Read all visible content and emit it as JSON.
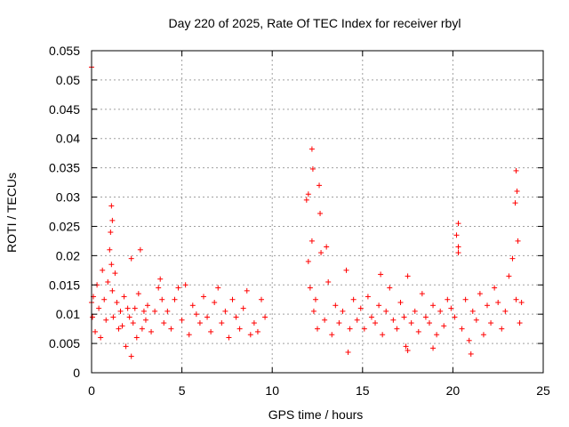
{
  "chart_data": {
    "type": "scatter",
    "title": "Day 220 of 2025, Rate Of TEC Index for receiver rbyl",
    "xlabel": "GPS time / hours",
    "ylabel": "ROTI / TECUs",
    "xlim": [
      0,
      25
    ],
    "ylim": [
      0,
      0.055
    ],
    "x_ticks": [
      "0",
      "5",
      "10",
      "15",
      "20",
      "25"
    ],
    "y_ticks": [
      "0",
      "0.005",
      "0.01",
      "0.015",
      "0.02",
      "0.025",
      "0.03",
      "0.035",
      "0.04",
      "0.045",
      "0.05",
      "0.055"
    ],
    "grid": true,
    "marker": "+",
    "series_color": "#ff0000",
    "series": [
      {
        "x": [
          0.0,
          0.05,
          0.1,
          0.2,
          0.3,
          0.4,
          0.5,
          0.6,
          0.7,
          0.8,
          0.9,
          1.0,
          1.05,
          1.1,
          1.15,
          1.2,
          1.3,
          1.4,
          1.5,
          1.6,
          1.7,
          1.8,
          1.9,
          2.0,
          2.1,
          2.2,
          2.3,
          2.4,
          2.5,
          2.6,
          2.7,
          2.8,
          2.9,
          3.0,
          3.1,
          3.3,
          3.5,
          3.7,
          3.8,
          3.9,
          4.0,
          4.2,
          4.4,
          4.6,
          4.8,
          5.0,
          5.2,
          5.4,
          5.6,
          5.8,
          6.0,
          6.2,
          6.4,
          6.6,
          6.8,
          7.0,
          7.2,
          7.4,
          7.6,
          7.8,
          8.0,
          8.2,
          8.4,
          8.6,
          8.8,
          9.0,
          9.2,
          9.4,
          9.6,
          11.9,
          12.0,
          12.1,
          12.2,
          12.3,
          12.4,
          12.5,
          12.7,
          12.9,
          13.1,
          13.3,
          13.5,
          13.7,
          13.9,
          14.1,
          14.3,
          14.5,
          14.7,
          14.9,
          15.1,
          15.3,
          15.5,
          15.7,
          15.9,
          16.1,
          16.3,
          16.5,
          16.7,
          16.9,
          17.1,
          17.3,
          17.5,
          17.7,
          17.9,
          18.1,
          18.3,
          18.5,
          18.7,
          18.9,
          19.1,
          19.3,
          19.5,
          19.7,
          19.9,
          20.1,
          20.2,
          20.3,
          20.5,
          20.7,
          20.9,
          21.1,
          21.3,
          21.5,
          21.7,
          21.9,
          22.1,
          22.3,
          22.5,
          22.7,
          22.9,
          23.1,
          23.3,
          23.5,
          23.6,
          23.7,
          23.8,
          0.0,
          1.1,
          1.15,
          2.2,
          12.2,
          12.25,
          12.6,
          12.65,
          13.0,
          12.0,
          20.3,
          23.5,
          23.55,
          23.45,
          14.2,
          17.4,
          17.5,
          18.9,
          16.0,
          20.3,
          21.0
        ],
        "y": [
          0.012,
          0.0095,
          0.013,
          0.007,
          0.015,
          0.011,
          0.006,
          0.0175,
          0.0125,
          0.009,
          0.0155,
          0.021,
          0.024,
          0.0185,
          0.014,
          0.0095,
          0.017,
          0.012,
          0.0075,
          0.0105,
          0.008,
          0.013,
          0.0045,
          0.011,
          0.0095,
          0.0195,
          0.0085,
          0.011,
          0.006,
          0.0135,
          0.021,
          0.0075,
          0.0105,
          0.009,
          0.0115,
          0.007,
          0.0105,
          0.0145,
          0.016,
          0.0125,
          0.0085,
          0.0105,
          0.0075,
          0.0125,
          0.0145,
          0.009,
          0.015,
          0.0065,
          0.0115,
          0.01,
          0.0085,
          0.013,
          0.0095,
          0.007,
          0.012,
          0.0145,
          0.0085,
          0.0105,
          0.006,
          0.0125,
          0.0095,
          0.0075,
          0.011,
          0.014,
          0.0065,
          0.0085,
          0.007,
          0.0125,
          0.0095,
          0.0295,
          0.019,
          0.0145,
          0.0225,
          0.0105,
          0.0125,
          0.0075,
          0.0205,
          0.009,
          0.0155,
          0.0065,
          0.0115,
          0.0085,
          0.0105,
          0.0175,
          0.0075,
          0.0125,
          0.009,
          0.011,
          0.0075,
          0.013,
          0.0095,
          0.0085,
          0.0115,
          0.0065,
          0.0105,
          0.0145,
          0.009,
          0.0075,
          0.012,
          0.0095,
          0.0165,
          0.0085,
          0.0105,
          0.007,
          0.0135,
          0.0095,
          0.0085,
          0.0115,
          0.0065,
          0.0105,
          0.008,
          0.0125,
          0.011,
          0.0095,
          0.0235,
          0.0215,
          0.0075,
          0.0125,
          0.0055,
          0.0105,
          0.009,
          0.0135,
          0.0065,
          0.0115,
          0.0085,
          0.0145,
          0.012,
          0.0075,
          0.0105,
          0.0165,
          0.0195,
          0.0125,
          0.0225,
          0.0085,
          0.012,
          0.0522,
          0.0285,
          0.026,
          0.0028,
          0.0382,
          0.0348,
          0.032,
          0.0272,
          0.0215,
          0.0305,
          0.0255,
          0.0345,
          0.031,
          0.029,
          0.0035,
          0.0045,
          0.0038,
          0.0042,
          0.0168,
          0.0205,
          0.0032
        ]
      }
    ]
  }
}
